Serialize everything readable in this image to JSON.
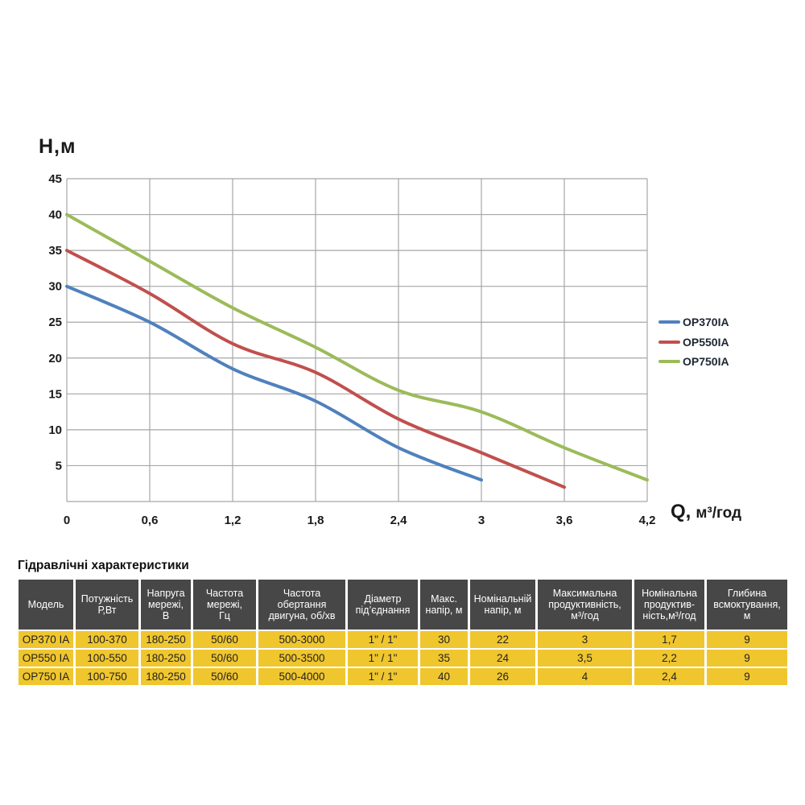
{
  "chart_data": {
    "type": "line",
    "title": "",
    "ylabel": "H,м",
    "xlabel_q": "Q,",
    "xlabel_unit": "м³/год",
    "xlim": [
      0,
      4.2
    ],
    "ylim": [
      0,
      45
    ],
    "grid": true,
    "legend_position": "right",
    "x_ticks": [
      0,
      0.6,
      1.2,
      1.8,
      2.4,
      3,
      3.6,
      4.2
    ],
    "x_tick_labels": [
      "0",
      "0,6",
      "1,2",
      "1,8",
      "2,4",
      "3",
      "3,6",
      "4,2"
    ],
    "y_ticks": [
      5,
      10,
      15,
      20,
      25,
      30,
      35,
      40,
      45
    ],
    "y_tick_labels": [
      "5",
      "10",
      "15",
      "20",
      "25",
      "30",
      "35",
      "40",
      "45"
    ],
    "series": [
      {
        "name": "OP370IA",
        "color": "#4F81BD",
        "x": [
          0,
          0.6,
          1.2,
          1.8,
          2.4,
          3.0
        ],
        "y": [
          30,
          25,
          18.5,
          14,
          7.5,
          3
        ]
      },
      {
        "name": "OP550IA",
        "color": "#C0504D",
        "x": [
          0,
          0.6,
          1.2,
          1.8,
          2.4,
          3.0,
          3.6
        ],
        "y": [
          35,
          29,
          22,
          18,
          11.5,
          6.8,
          2
        ]
      },
      {
        "name": "OP750IA",
        "color": "#9BBB59",
        "x": [
          0,
          0.6,
          1.2,
          1.8,
          2.4,
          3.0,
          3.6,
          4.2
        ],
        "y": [
          40,
          33.5,
          27,
          21.5,
          15.5,
          12.5,
          7.5,
          3
        ]
      }
    ]
  },
  "colors": {
    "grid": "#A6A6A6",
    "axis_text": "#1a1a1a",
    "legend_text": "#1d2633",
    "table_header_bg": "#474747",
    "table_row_bg": "#F0C62E"
  },
  "table": {
    "title": "Гідравлічні характеристики",
    "headers": [
      "Модель",
      "Потужність\nР,Вт",
      "Напруга\nмережі,\nВ",
      "Частота\nмережі,\nГц",
      "Частота\nобертання\nдвигуна, об/хв",
      "Діаметр\nпід’єднання",
      "Макс.\nнапір, м",
      "Номінальній\nнапір, м",
      "Максимальна\nпродуктивність,\nм³/год",
      "Номінальна\nпродуктив-\nність,м³/год",
      "Глибина\nвсмоктування,\nм"
    ],
    "rows": [
      [
        "OP370 IA",
        "100-370",
        "180-250",
        "50/60",
        "500-3000",
        "1\" / 1\"",
        "30",
        "22",
        "3",
        "1,7",
        "9"
      ],
      [
        "OP550 IA",
        "100-550",
        "180-250",
        "50/60",
        "500-3500",
        "1\" / 1\"",
        "35",
        "24",
        "3,5",
        "2,2",
        "9"
      ],
      [
        "OP750 IA",
        "100-750",
        "180-250",
        "50/60",
        "500-4000",
        "1\" / 1\"",
        "40",
        "26",
        "4",
        "2,4",
        "9"
      ]
    ]
  }
}
